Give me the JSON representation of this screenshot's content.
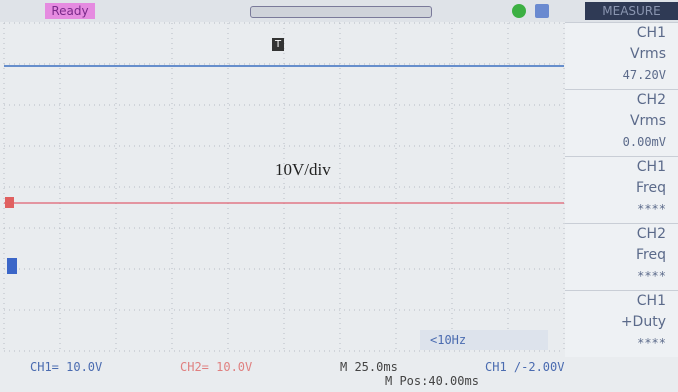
{
  "status_bar": {
    "status": "Ready",
    "menu_title": "MEASURE"
  },
  "waveform": {
    "annotation": "10V/div",
    "trigger_marker": "T"
  },
  "measure_panel": {
    "items": [
      {
        "source": "CH1",
        "type": "Vrms",
        "value": "47.20V"
      },
      {
        "source": "CH2",
        "type": "Vrms",
        "value": "0.00mV"
      },
      {
        "source": "CH1",
        "type": "Freq",
        "value": "****"
      },
      {
        "source": "CH2",
        "type": "Freq",
        "value": "****"
      },
      {
        "source": "CH1",
        "type": "+Duty",
        "value": "****"
      }
    ]
  },
  "bottom_bar": {
    "ch1_scale": "CH1= 10.0V",
    "ch2_scale": "CH2= 10.0V",
    "timebase": "M 25.0ms",
    "position": "M Pos:40.00ms",
    "trigger": "CH1 /-2.00V",
    "frequency": "<10Hz"
  }
}
